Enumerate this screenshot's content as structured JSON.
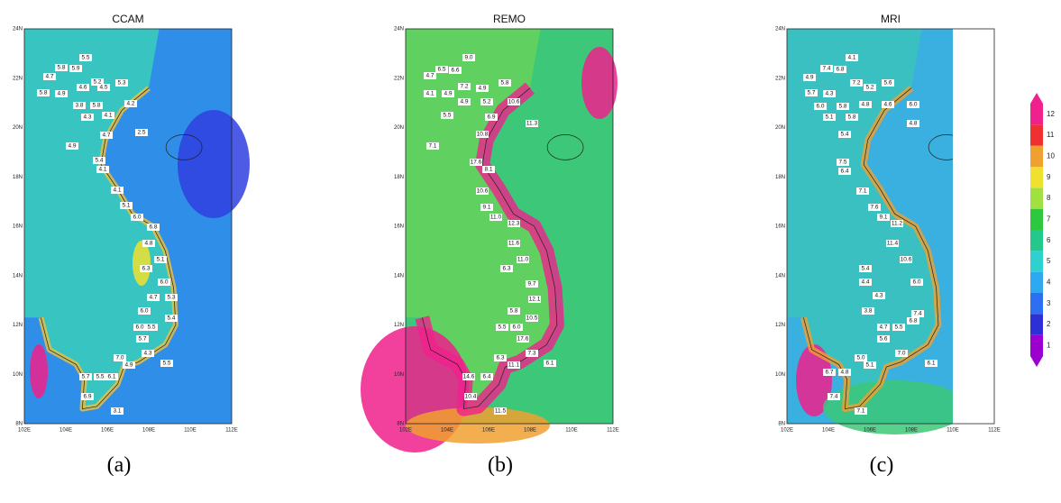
{
  "panels": [
    {
      "title": "CCAM",
      "caption": "(a)",
      "stations": [
        "5.5",
        "4.7",
        "5.8",
        "5.9",
        "5.8",
        "4.9",
        "4.6",
        "5.2",
        "5.3",
        "4.5",
        "3.8",
        "5.8",
        "4.3",
        "4.1",
        "4.2",
        "2.5",
        "4.7",
        "4.9",
        "5.4",
        "4.1",
        "4.1",
        "5.1",
        "6.0",
        "6.8",
        "4.8",
        "5.1",
        "6.3",
        "4.7",
        "5.3",
        "6.0",
        "6.0",
        "5.4",
        "6.0",
        "5.5",
        "5.7",
        "7.0",
        "4.9",
        "4.3",
        "5.5",
        "5.7",
        "5.5",
        "6.1",
        "6.9",
        "3.1"
      ]
    },
    {
      "title": "REMO",
      "caption": "(b)",
      "stations": [
        "9.0",
        "6.5",
        "6.6",
        "4.7",
        "5.8",
        "7.2",
        "4.9",
        "4.1",
        "4.9",
        "4.9",
        "5.2",
        "5.5",
        "6.9",
        "10.6",
        "11.3",
        "10.8",
        "7.1",
        "17.6",
        "8.1",
        "10.6",
        "9.1",
        "11.0",
        "12.3",
        "11.6",
        "11.0",
        "6.3",
        "9.7",
        "12.1",
        "5.8",
        "10.5",
        "5.5",
        "6.0",
        "17.6",
        "6.3",
        "11.1",
        "7.3",
        "6.1",
        "14.6",
        "6.4",
        "10.4",
        "11.5"
      ]
    },
    {
      "title": "MRI",
      "caption": "(c)",
      "stations": [
        "4.1",
        "7.4",
        "6.8",
        "4.9",
        "7.2",
        "5.2",
        "5.6",
        "5.7",
        "4.3",
        "6.0",
        "5.1",
        "5.8",
        "4.8",
        "4.6",
        "6.0",
        "5.8",
        "5.4",
        "4.8",
        "7.5",
        "6.4",
        "7.1",
        "7.6",
        "9.1",
        "11.2",
        "11.4",
        "10.6",
        "5.4",
        "4.4",
        "4.3",
        "6.0",
        "3.8",
        "7.4",
        "4.7",
        "5.5",
        "6.8",
        "5.6",
        "5.0",
        "5.1",
        "7.0",
        "6.1",
        "6.7",
        "4.8",
        "7.4",
        "7.1"
      ]
    }
  ],
  "axes": {
    "y": [
      "8N",
      "10N",
      "12N",
      "14N",
      "16N",
      "18N",
      "20N",
      "22N",
      "24N"
    ],
    "x": [
      "102E",
      "104E",
      "106E",
      "108E",
      "110E",
      "112E"
    ]
  },
  "colorbar": {
    "ticks": [
      1,
      2,
      3,
      4,
      5,
      6,
      7,
      8,
      9,
      10,
      11,
      12
    ],
    "colors": [
      "#9b00d0",
      "#2f2fd8",
      "#2e6ef0",
      "#2ea8f0",
      "#2ed0d0",
      "#22c88c",
      "#2ec840",
      "#a0e040",
      "#f0e030",
      "#f0a030",
      "#f03030",
      "#f0208c"
    ]
  }
}
